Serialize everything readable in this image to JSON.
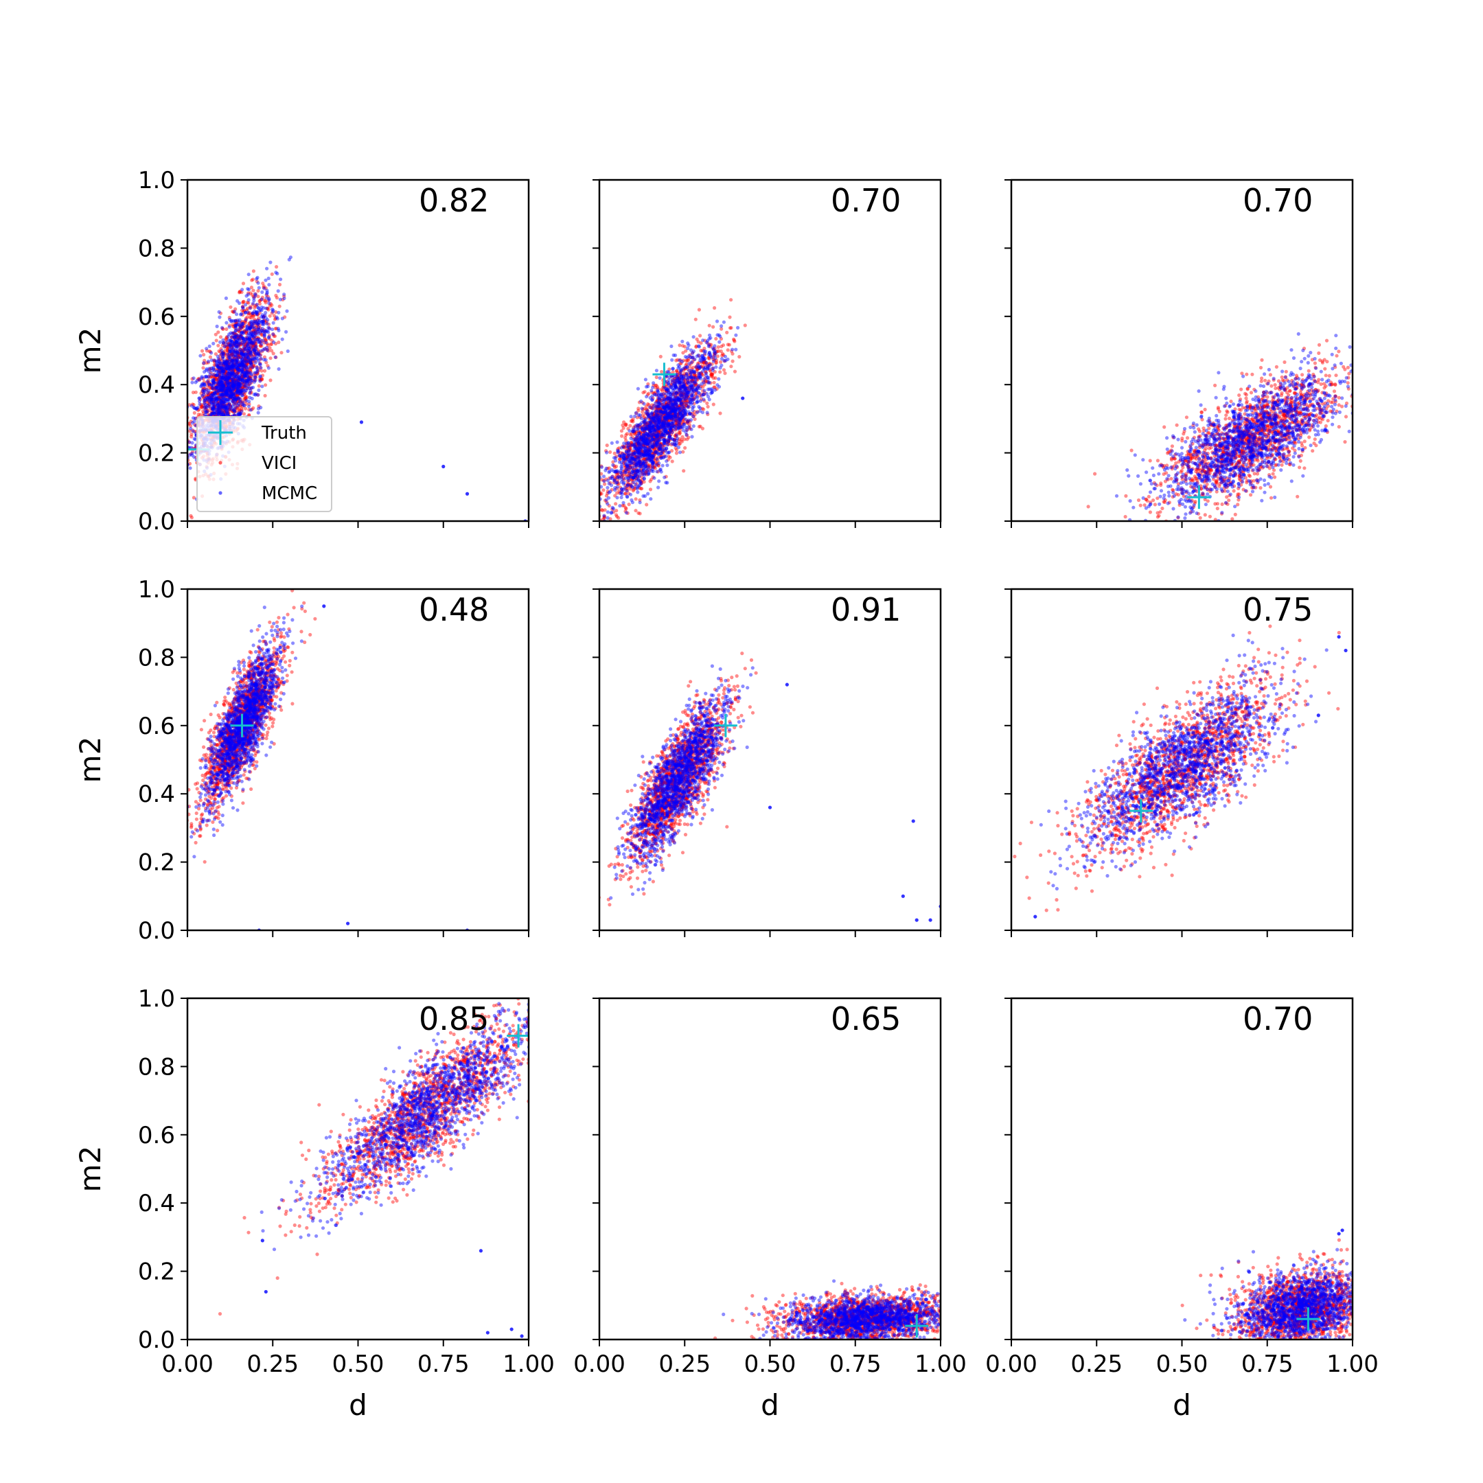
{
  "figure": {
    "xlabel": "d",
    "ylabel": "m2",
    "legend": {
      "placement": "lower-left of first panel",
      "entries": [
        "Truth",
        "VICI",
        "MCMC"
      ]
    },
    "colors": {
      "vici": "#ff0000",
      "mcmc": "#0000ff",
      "truth": "#17becf",
      "axes": "#000000",
      "background": "#ffffff"
    }
  },
  "chart_data": [
    {
      "type": "scatter",
      "panel": 1,
      "score": "0.82",
      "xlim": [
        0,
        1
      ],
      "ylim": [
        0,
        1
      ],
      "xticks": [
        "0.00",
        "0.25",
        "0.50",
        "0.75",
        "1.00"
      ],
      "yticks": [
        "0.0",
        "0.2",
        "0.4",
        "0.6",
        "0.8",
        "1.0"
      ],
      "xlabel": "",
      "ylabel": "m2",
      "truth": [
        0.03,
        0.21
      ],
      "series": [
        {
          "name": "VICI",
          "center": [
            0.13,
            0.42
          ],
          "spread": [
            0.06,
            0.12
          ],
          "corr": 0.7
        },
        {
          "name": "MCMC",
          "center": [
            0.13,
            0.42
          ],
          "spread": [
            0.055,
            0.11
          ],
          "corr": 0.7
        }
      ],
      "outliers": [
        [
          0.51,
          0.29
        ],
        [
          0.75,
          0.16
        ],
        [
          0.82,
          0.08
        ],
        [
          0.99,
          0.0
        ]
      ]
    },
    {
      "type": "scatter",
      "panel": 2,
      "score": "0.70",
      "xlim": [
        0,
        1
      ],
      "ylim": [
        0,
        1
      ],
      "xticks": [
        "0.00",
        "0.25",
        "0.50",
        "0.75",
        "1.00"
      ],
      "yticks": [
        "0.0",
        "0.2",
        "0.4",
        "0.6",
        "0.8",
        "1.0"
      ],
      "xlabel": "",
      "ylabel": "",
      "truth": [
        0.19,
        0.43
      ],
      "series": [
        {
          "name": "VICI",
          "center": [
            0.18,
            0.28
          ],
          "spread": [
            0.085,
            0.12
          ],
          "corr": 0.85
        },
        {
          "name": "MCMC",
          "center": [
            0.18,
            0.28
          ],
          "spread": [
            0.08,
            0.115
          ],
          "corr": 0.85
        }
      ],
      "outliers": [
        [
          0.42,
          0.36
        ]
      ]
    },
    {
      "type": "scatter",
      "panel": 3,
      "score": "0.70",
      "xlim": [
        0,
        1
      ],
      "ylim": [
        0,
        1
      ],
      "xticks": [
        "0.00",
        "0.25",
        "0.50",
        "0.75",
        "1.00"
      ],
      "yticks": [
        "0.0",
        "0.2",
        "0.4",
        "0.6",
        "0.8",
        "1.0"
      ],
      "xlabel": "",
      "ylabel": "",
      "truth": [
        0.55,
        0.07
      ],
      "series": [
        {
          "name": "VICI",
          "center": [
            0.7,
            0.24
          ],
          "spread": [
            0.14,
            0.1
          ],
          "corr": 0.7
        },
        {
          "name": "MCMC",
          "center": [
            0.7,
            0.24
          ],
          "spread": [
            0.13,
            0.095
          ],
          "corr": 0.7
        }
      ],
      "outliers": []
    },
    {
      "type": "scatter",
      "panel": 4,
      "score": "0.48",
      "xlim": [
        0,
        1
      ],
      "ylim": [
        0,
        1
      ],
      "xticks": [
        "0.00",
        "0.25",
        "0.50",
        "0.75",
        "1.00"
      ],
      "yticks": [
        "0.0",
        "0.2",
        "0.4",
        "0.6",
        "0.8",
        "1.0"
      ],
      "xlabel": "",
      "ylabel": "m2",
      "truth": [
        0.16,
        0.6
      ],
      "series": [
        {
          "name": "VICI",
          "center": [
            0.16,
            0.6
          ],
          "spread": [
            0.06,
            0.12
          ],
          "corr": 0.8
        },
        {
          "name": "MCMC",
          "center": [
            0.16,
            0.6
          ],
          "spread": [
            0.055,
            0.115
          ],
          "corr": 0.8
        }
      ],
      "outliers": [
        [
          0.21,
          0.0
        ],
        [
          0.47,
          0.02
        ],
        [
          0.82,
          0.0
        ],
        [
          0.4,
          0.95
        ]
      ]
    },
    {
      "type": "scatter",
      "panel": 5,
      "score": "0.91",
      "xlim": [
        0,
        1
      ],
      "ylim": [
        0,
        1
      ],
      "xticks": [
        "0.00",
        "0.25",
        "0.50",
        "0.75",
        "1.00"
      ],
      "yticks": [
        "0.0",
        "0.2",
        "0.4",
        "0.6",
        "0.8",
        "1.0"
      ],
      "xlabel": "",
      "ylabel": "",
      "truth": [
        0.37,
        0.6
      ],
      "series": [
        {
          "name": "VICI",
          "center": [
            0.23,
            0.44
          ],
          "spread": [
            0.075,
            0.12
          ],
          "corr": 0.8
        },
        {
          "name": "MCMC",
          "center": [
            0.23,
            0.44
          ],
          "spread": [
            0.07,
            0.115
          ],
          "corr": 0.8
        }
      ],
      "outliers": [
        [
          0.5,
          0.36
        ],
        [
          0.92,
          0.32
        ],
        [
          0.89,
          0.1
        ],
        [
          0.93,
          0.03
        ],
        [
          0.97,
          0.03
        ],
        [
          1.0,
          0.07
        ],
        [
          0.55,
          0.72
        ]
      ]
    },
    {
      "type": "scatter",
      "panel": 6,
      "score": "0.75",
      "xlim": [
        0,
        1
      ],
      "ylim": [
        0,
        1
      ],
      "xticks": [
        "0.00",
        "0.25",
        "0.50",
        "0.75",
        "1.00"
      ],
      "yticks": [
        "0.0",
        "0.2",
        "0.4",
        "0.6",
        "0.8",
        "1.0"
      ],
      "xlabel": "",
      "ylabel": "",
      "truth": [
        0.38,
        0.35
      ],
      "series": [
        {
          "name": "VICI",
          "center": [
            0.5,
            0.48
          ],
          "spread": [
            0.15,
            0.13
          ],
          "corr": 0.75
        },
        {
          "name": "MCMC",
          "center": [
            0.5,
            0.48
          ],
          "spread": [
            0.14,
            0.12
          ],
          "corr": 0.75
        }
      ],
      "outliers": [
        [
          0.07,
          0.04
        ],
        [
          0.98,
          0.82
        ],
        [
          0.96,
          0.86
        ],
        [
          0.9,
          0.63
        ]
      ]
    },
    {
      "type": "scatter",
      "panel": 7,
      "score": "0.85",
      "xlim": [
        0,
        1
      ],
      "ylim": [
        0,
        1
      ],
      "xticks": [
        "0.00",
        "0.25",
        "0.50",
        "0.75",
        "1.00"
      ],
      "yticks": [
        "0.0",
        "0.2",
        "0.4",
        "0.6",
        "0.8",
        "1.0"
      ],
      "xlabel": "d",
      "ylabel": "m2",
      "truth": [
        0.97,
        0.89
      ],
      "series": [
        {
          "name": "VICI",
          "center": [
            0.7,
            0.67
          ],
          "spread": [
            0.16,
            0.14
          ],
          "corr": 0.85
        },
        {
          "name": "MCMC",
          "center": [
            0.7,
            0.67
          ],
          "spread": [
            0.15,
            0.13
          ],
          "corr": 0.85
        }
      ],
      "outliers": [
        [
          0.22,
          0.29
        ],
        [
          0.23,
          0.14
        ],
        [
          0.86,
          0.26
        ],
        [
          0.88,
          0.02
        ],
        [
          0.95,
          0.03
        ],
        [
          0.98,
          0.01
        ]
      ]
    },
    {
      "type": "scatter",
      "panel": 8,
      "score": "0.65",
      "xlim": [
        0,
        1
      ],
      "ylim": [
        0,
        1
      ],
      "xticks": [
        "0.00",
        "0.25",
        "0.50",
        "0.75",
        "1.00"
      ],
      "yticks": [
        "0.0",
        "0.2",
        "0.4",
        "0.6",
        "0.8",
        "1.0"
      ],
      "xlabel": "d",
      "ylabel": "",
      "truth": [
        0.93,
        0.04
      ],
      "series": [
        {
          "name": "VICI",
          "center": [
            0.78,
            0.06
          ],
          "spread": [
            0.13,
            0.035
          ],
          "corr": 0.2
        },
        {
          "name": "MCMC",
          "center": [
            0.78,
            0.06
          ],
          "spread": [
            0.12,
            0.033
          ],
          "corr": 0.2
        }
      ],
      "outliers": []
    },
    {
      "type": "scatter",
      "panel": 9,
      "score": "0.70",
      "xlim": [
        0,
        1
      ],
      "ylim": [
        0,
        1
      ],
      "xticks": [
        "0.00",
        "0.25",
        "0.50",
        "0.75",
        "1.00"
      ],
      "yticks": [
        "0.0",
        "0.2",
        "0.4",
        "0.6",
        "0.8",
        "1.0"
      ],
      "xlabel": "d",
      "ylabel": "",
      "truth": [
        0.87,
        0.06
      ],
      "series": [
        {
          "name": "VICI",
          "center": [
            0.85,
            0.09
          ],
          "spread": [
            0.1,
            0.06
          ],
          "corr": 0.3
        },
        {
          "name": "MCMC",
          "center": [
            0.85,
            0.09
          ],
          "spread": [
            0.095,
            0.055
          ],
          "corr": 0.3
        }
      ],
      "outliers": [
        [
          0.97,
          0.32
        ],
        [
          0.96,
          0.31
        ]
      ]
    }
  ]
}
